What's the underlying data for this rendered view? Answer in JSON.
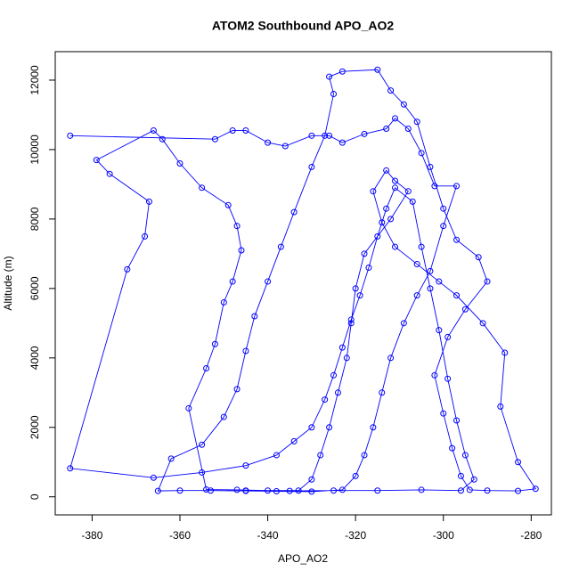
{
  "chart_data": {
    "type": "line",
    "title": "ATOM2 Southbound APO_AO2",
    "x_label": "APO_AO2",
    "y_label": "Altitude (m)",
    "markers": "circle",
    "x": [
      -385,
      -352,
      -348,
      -345,
      -340,
      -336,
      -330,
      -326,
      -323,
      -318,
      -313,
      -311,
      -308,
      -305,
      -302,
      -297,
      -300,
      -303,
      -306,
      -309,
      -312,
      -314,
      -316,
      -318,
      -320,
      -323,
      -330,
      -338,
      -345,
      -353,
      -360,
      -365,
      -362,
      -355,
      -350,
      -347,
      -345,
      -343,
      -340,
      -337,
      -334,
      -330,
      -327,
      -325,
      -326,
      -323,
      -315,
      -312,
      -309,
      -306,
      -303,
      -300,
      -297,
      -292,
      -290,
      -295,
      -299,
      -302,
      -300,
      -298,
      -296,
      -294,
      -290,
      -283,
      -279,
      -283,
      -287,
      -286,
      -291,
      -297,
      -301,
      -306,
      -311,
      -314,
      -316,
      -313,
      -311,
      -308,
      -312,
      -318,
      -320,
      -321,
      -322,
      -324,
      -326,
      -328,
      -330,
      -333,
      -340,
      -347,
      -354,
      -358,
      -354,
      -352,
      -350,
      -348,
      -346,
      -347,
      -349,
      -355,
      -360,
      -364,
      -366,
      -379,
      -376,
      -367,
      -368,
      -372,
      -385,
      -366,
      -355,
      -345,
      -338,
      -334,
      -330,
      -327,
      -325,
      -323,
      -321,
      -319,
      -317,
      -315,
      -313,
      -311,
      -307,
      -305,
      -303,
      -301,
      -299,
      -297,
      -295,
      -293,
      -296,
      -305,
      -315,
      -325,
      -335,
      -345
    ],
    "series": [
      {
        "color": "#0000ff",
        "values": [
          10400,
          10300,
          10550,
          10550,
          10200,
          10100,
          10400,
          10400,
          10200,
          10450,
          10600,
          10900,
          10600,
          9900,
          8950,
          8950,
          7800,
          6500,
          5800,
          5000,
          4000,
          3000,
          2000,
          1200,
          600,
          200,
          150,
          160,
          170,
          180,
          180,
          170,
          1100,
          1500,
          2300,
          3100,
          4200,
          5200,
          6200,
          7200,
          8200,
          9500,
          10400,
          11600,
          12100,
          12250,
          12300,
          11700,
          11300,
          10800,
          9500,
          8300,
          7400,
          6900,
          6200,
          5400,
          4600,
          3500,
          2400,
          1400,
          600,
          200,
          180,
          170,
          230,
          1000,
          2600,
          4150,
          5000,
          5800,
          6200,
          6700,
          7200,
          7900,
          8800,
          9400,
          9100,
          8800,
          8000,
          7000,
          6000,
          5000,
          4000,
          3000,
          2000,
          1200,
          500,
          180,
          180,
          200,
          210,
          2550,
          3700,
          4400,
          5600,
          6200,
          7100,
          7800,
          8400,
          8900,
          9600,
          10300,
          10550,
          9700,
          9300,
          8500,
          7500,
          6550,
          820,
          550,
          700,
          900,
          1200,
          1600,
          2000,
          2800,
          3500,
          4300,
          5100,
          5800,
          6600,
          7500,
          8300,
          8900,
          8500,
          7200,
          6000,
          4800,
          3400,
          2200,
          1200,
          500,
          180,
          200,
          180,
          180,
          170,
          180
        ]
      }
    ],
    "xlim": [
      -388.4,
      -275.4
    ],
    "ylim": [
      -520,
      12820
    ],
    "xticks": [
      -380,
      -360,
      -340,
      -320,
      -300,
      -280
    ],
    "yticks": [
      0,
      2000,
      4000,
      6000,
      8000,
      10000,
      12000
    ]
  }
}
